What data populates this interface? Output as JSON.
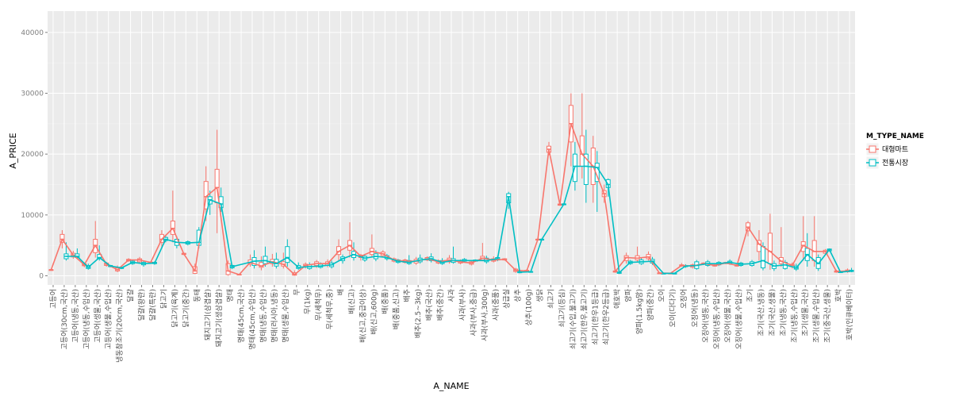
{
  "chart_data": {
    "type": "box",
    "title": "",
    "xlabel": "A_NAME",
    "ylabel": "A_PRICE",
    "ylim": [
      -1500,
      43500
    ],
    "yticks": [
      0,
      10000,
      20000,
      30000,
      40000
    ],
    "ytick_labels": [
      "0",
      "10000",
      "20000",
      "30000",
      "40000"
    ],
    "grid": true,
    "legend_position": "right",
    "legend": {
      "title": "M_TYPE_NAME",
      "entries": [
        {
          "label": "대형마트",
          "color": "#F8766D"
        },
        {
          "label": "전통시장",
          "color": "#00BFC4"
        }
      ]
    },
    "categories": [
      "고등어",
      "고등어(30cm,국산)",
      "고등어(냉동,국산)",
      "고등어(냉동,수입산)",
      "고등어(생물,국산)",
      "고등어(생물,수입산)",
      "냉동참조기(20cm,국산)",
      "달걀",
      "달걀(왕란)",
      "달걀(특란)",
      "닭고기",
      "닭고기(육계)",
      "닭고기(중간)",
      "동태",
      "돼지고기(삼겹살)",
      "돼지고기(생삼겹살)",
      "명태",
      "명태(45cm,국산)",
      "명태(45cm,수입산)",
      "명태(냉동,수입산)",
      "명태(러시아,냉동)",
      "명태(생물,수입산)",
      "무",
      "무(1kg)",
      "무(세척무)",
      "무(세척무,중)",
      "배",
      "배(신고)",
      "배(신고,중급이상)",
      "배(신고,600g)",
      "배(중품)",
      "배(중품,신고)",
      "배추",
      "배추(2.5~3kg)",
      "배추(국산)",
      "배추(중간)",
      "사과",
      "사과(부사)",
      "사과(부사,중급)",
      "사과(부사,300g)",
      "사과(중품)",
      "상급실",
      "상추",
      "상추(100g)",
      "생닭",
      "쇠고기",
      "쇠고기(등심)",
      "쇠고기(수입,불고기)",
      "쇠고기(한우,불고기)",
      "쇠고기(한우1등급)",
      "쇠고기(한우2등급)",
      "애호박",
      "양파",
      "양파(1.5kg망)",
      "양파(중간)",
      "오이",
      "오이(다다기)",
      "오징어",
      "오징어(냉동)",
      "오징어(냉동,국산)",
      "오징어(냉동,수입산)",
      "오징어(생물,국산)",
      "오징어(생물,수입산)",
      "조기",
      "조기(국산,냉동)",
      "조기(국산,생물)",
      "조기(냉동,국산)",
      "조기(냉동,수입산)",
      "조기(생물,국산)",
      "조기(생물,수입산)",
      "조기(중국산,생물)",
      "호박",
      "호박(인큐베이터)"
    ],
    "series": [
      {
        "name": "대형마트",
        "color": "#F8766D",
        "boxes": [
          [
            1000,
            1000,
            1000,
            1000,
            1000
          ],
          [
            4500,
            5500,
            6000,
            6800,
            7500
          ],
          [
            2800,
            3100,
            3400,
            3700,
            4100
          ],
          [
            1400,
            1650,
            1800,
            1950,
            2200
          ],
          [
            3000,
            3800,
            5000,
            6000,
            9000
          ],
          [
            1500,
            1700,
            1900,
            2100,
            2300
          ],
          [
            600,
            800,
            1000,
            1300,
            1700
          ],
          [
            2300,
            2450,
            2600,
            2700,
            2900
          ],
          [
            2000,
            2300,
            2600,
            2800,
            3100
          ],
          [
            2000,
            2100,
            2200,
            2250,
            2300
          ],
          [
            4500,
            5500,
            6000,
            6800,
            7500
          ],
          [
            5500,
            6800,
            7800,
            9000,
            14000
          ],
          [
            3400,
            3500,
            3600,
            3700,
            3800
          ],
          [
            300,
            400,
            800,
            1500,
            2000
          ],
          [
            9000,
            11000,
            13000,
            15500,
            18000
          ],
          [
            7000,
            12000,
            14500,
            17500,
            24000
          ],
          [
            0,
            200,
            800,
            2000,
            2500
          ],
          [
            100,
            150,
            200,
            250,
            300
          ],
          [
            1500,
            1900,
            2200,
            2600,
            3500
          ],
          [
            900,
            1400,
            1600,
            2200,
            3200
          ],
          [
            1500,
            2000,
            2300,
            2700,
            3600
          ],
          [
            1200,
            1600,
            1900,
            2300,
            3800
          ],
          [
            0,
            100,
            200,
            500,
            900
          ],
          [
            1200,
            1500,
            1700,
            1900,
            2200
          ],
          [
            1300,
            1700,
            2000,
            2300,
            2600
          ],
          [
            1400,
            1700,
            2000,
            2300,
            2700
          ],
          [
            2500,
            3500,
            4000,
            4800,
            6000
          ],
          [
            3000,
            4200,
            5000,
            5800,
            8800
          ],
          [
            2500,
            3000,
            3200,
            3400,
            3600
          ],
          [
            3000,
            3500,
            4000,
            4500,
            6800
          ],
          [
            3000,
            3300,
            3600,
            3900,
            4200
          ],
          [
            2200,
            2400,
            2600,
            2800,
            3000
          ],
          [
            2000,
            2200,
            2400,
            2600,
            2800
          ],
          [
            1800,
            2100,
            2400,
            2700,
            3100
          ],
          [
            2400,
            2600,
            2800,
            3000,
            3200
          ],
          [
            1900,
            2100,
            2300,
            2500,
            2700
          ],
          [
            2000,
            2300,
            2600,
            2900,
            3400
          ],
          [
            1900,
            2100,
            2300,
            2500,
            2700
          ],
          [
            1700,
            1900,
            2100,
            2300,
            2500
          ],
          [
            2400,
            2600,
            2900,
            3200,
            5400
          ],
          [
            2200,
            2400,
            2600,
            2800,
            3200
          ],
          [
            2500,
            2600,
            2700,
            2800,
            2900
          ],
          [
            500,
            700,
            900,
            1100,
            1300
          ],
          [
            600,
            700,
            800,
            900,
            1100
          ],
          [
            5900,
            6000,
            6000,
            6000,
            6100
          ],
          [
            19800,
            20300,
            20800,
            21300,
            22000
          ],
          [
            11500,
            11600,
            11700,
            11800,
            11900
          ],
          [
            18000,
            22000,
            25000,
            28000,
            30000
          ],
          [
            16000,
            18000,
            20000,
            23000,
            30000
          ],
          [
            12000,
            15000,
            18000,
            21000,
            23000
          ],
          [
            12000,
            13000,
            13500,
            14000,
            15000
          ],
          [
            500,
            600,
            700,
            800,
            900
          ],
          [
            2000,
            2500,
            3000,
            3300,
            3800
          ],
          [
            2200,
            2600,
            2900,
            3300,
            4800
          ],
          [
            2500,
            2800,
            3100,
            3500,
            4000
          ],
          [
            400,
            420,
            450,
            470,
            500
          ],
          [
            380,
            400,
            420,
            440,
            460
          ],
          [
            1500,
            1600,
            1700,
            1800,
            2100
          ],
          [
            1200,
            1400,
            1600,
            1800,
            2000
          ],
          [
            1800,
            1900,
            2000,
            2100,
            2200
          ],
          [
            1500,
            1600,
            1700,
            1800,
            1900
          ],
          [
            1900,
            2000,
            2100,
            2200,
            2300
          ],
          [
            1500,
            1600,
            1700,
            1800,
            1900
          ],
          [
            6500,
            7400,
            8000,
            8700,
            9000
          ],
          [
            2500,
            4000,
            5200,
            5800,
            7500
          ],
          [
            1000,
            2000,
            4000,
            7000,
            10200
          ],
          [
            1500,
            2000,
            2400,
            3000,
            8000
          ],
          [
            1200,
            1500,
            1700,
            1900,
            2200
          ],
          [
            2500,
            4000,
            5000,
            5600,
            9800
          ],
          [
            1500,
            2500,
            4000,
            5800,
            9800
          ],
          [
            3500,
            3700,
            4000,
            4200,
            4400
          ],
          [
            500,
            600,
            700,
            800,
            1000
          ],
          [
            500,
            650,
            800,
            950,
            1200
          ]
        ]
      },
      {
        "name": "전통시장",
        "color": "#00BFC4",
        "boxes": [
          null,
          [
            2500,
            2800,
            3200,
            3600,
            5500
          ],
          [
            2800,
            3000,
            3200,
            3600,
            4500
          ],
          [
            1000,
            1200,
            1400,
            1700,
            2000
          ],
          [
            2500,
            2800,
            3000,
            3500,
            5000
          ],
          [
            1400,
            1500,
            1600,
            1700,
            1800
          ],
          [
            1100,
            1200,
            1300,
            1400,
            1500
          ],
          [
            1800,
            2000,
            2200,
            2400,
            2600
          ],
          [
            1500,
            1800,
            2000,
            2200,
            2400
          ],
          [
            1800,
            2000,
            2100,
            2200,
            2400
          ],
          [
            5500,
            5800,
            6000,
            6300,
            6700
          ],
          [
            4500,
            5000,
            5500,
            6000,
            6500
          ],
          [
            5000,
            5200,
            5400,
            5600,
            5800
          ],
          [
            4500,
            5000,
            5500,
            7500,
            8000
          ],
          [
            10000,
            11800,
            12500,
            13000,
            14000
          ],
          [
            10500,
            11200,
            11800,
            13000,
            14500
          ],
          [
            1100,
            1300,
            1500,
            1700,
            1900
          ],
          null,
          [
            1200,
            1700,
            2400,
            3000,
            4200
          ],
          [
            1500,
            2000,
            2500,
            3200,
            4800
          ],
          [
            1200,
            1600,
            2000,
            2700,
            3800
          ],
          [
            1500,
            2200,
            3000,
            4800,
            6000
          ],
          [
            1000,
            1200,
            1400,
            1700,
            2200
          ],
          [
            1000,
            1200,
            1500,
            1800,
            2200
          ],
          [
            1200,
            1400,
            1600,
            1900,
            2200
          ],
          [
            1200,
            1500,
            1800,
            2100,
            2500
          ],
          [
            2000,
            2500,
            2800,
            3100,
            3500
          ],
          [
            2500,
            3000,
            3500,
            4000,
            5500
          ],
          [
            2300,
            2600,
            2900,
            3200,
            3600
          ],
          [
            2400,
            2800,
            3200,
            3600,
            4200
          ],
          [
            2500,
            2800,
            3000,
            3300,
            3600
          ],
          [
            2000,
            2200,
            2400,
            2600,
            2800
          ],
          [
            1800,
            2000,
            2200,
            2500,
            3400
          ],
          [
            2000,
            2300,
            2600,
            2900,
            3500
          ],
          [
            2200,
            2500,
            2800,
            3100,
            3700
          ],
          [
            1800,
            2000,
            2200,
            2500,
            2900
          ],
          [
            2000,
            2200,
            2500,
            2800,
            4800
          ],
          [
            2200,
            2400,
            2500,
            2700,
            2900
          ],
          [
            2300,
            2400,
            2500,
            2600,
            2700
          ],
          [
            2000,
            2300,
            2500,
            2900,
            3300
          ],
          [
            2400,
            2600,
            2800,
            3000,
            3300
          ],
          [
            11000,
            12000,
            13000,
            13500,
            13800
          ],
          [
            400,
            500,
            600,
            700,
            800
          ],
          [
            500,
            600,
            650,
            700,
            800
          ],
          [
            5900,
            6000,
            6000,
            6000,
            6100
          ],
          null,
          [
            11600,
            11700,
            11800,
            11800,
            11900
          ],
          [
            14000,
            15500,
            18000,
            20000,
            22000
          ],
          [
            12000,
            15000,
            18000,
            20000,
            24000
          ],
          [
            10500,
            15500,
            17800,
            18500,
            20500
          ],
          [
            13000,
            14500,
            15000,
            15800,
            16000
          ],
          [
            300,
            400,
            500,
            600,
            700
          ],
          [
            1800,
            2000,
            2200,
            2400,
            2600
          ],
          [
            1800,
            2000,
            2300,
            2600,
            3000
          ],
          [
            1800,
            2100,
            2400,
            2700,
            3100
          ],
          [
            350,
            380,
            400,
            420,
            450
          ],
          [
            350,
            380,
            400,
            420,
            450
          ],
          [
            1300,
            1500,
            1600,
            1700,
            1900
          ],
          [
            1000,
            1200,
            1700,
            2300,
            2600
          ],
          [
            1500,
            1700,
            2000,
            2300,
            2600
          ],
          [
            1600,
            1800,
            2000,
            2200,
            2400
          ],
          [
            1800,
            2000,
            2200,
            2400,
            2700
          ],
          [
            1500,
            1700,
            1900,
            2100,
            2300
          ],
          [
            1500,
            1700,
            2000,
            2300,
            2600
          ],
          [
            900,
            1300,
            2500,
            4800,
            5500
          ],
          [
            800,
            1200,
            1600,
            2000,
            2500
          ],
          [
            1000,
            1200,
            1800,
            2200,
            2600
          ],
          [
            800,
            1100,
            1300,
            1600,
            2000
          ],
          [
            1500,
            2500,
            3500,
            4500,
            7000
          ],
          [
            800,
            1200,
            2000,
            3000,
            3500
          ],
          [
            4000,
            4100,
            4300,
            4400,
            4500
          ],
          [
            500,
            550,
            600,
            650,
            700
          ],
          [
            600,
            700,
            800,
            900,
            1300
          ]
        ]
      }
    ]
  }
}
